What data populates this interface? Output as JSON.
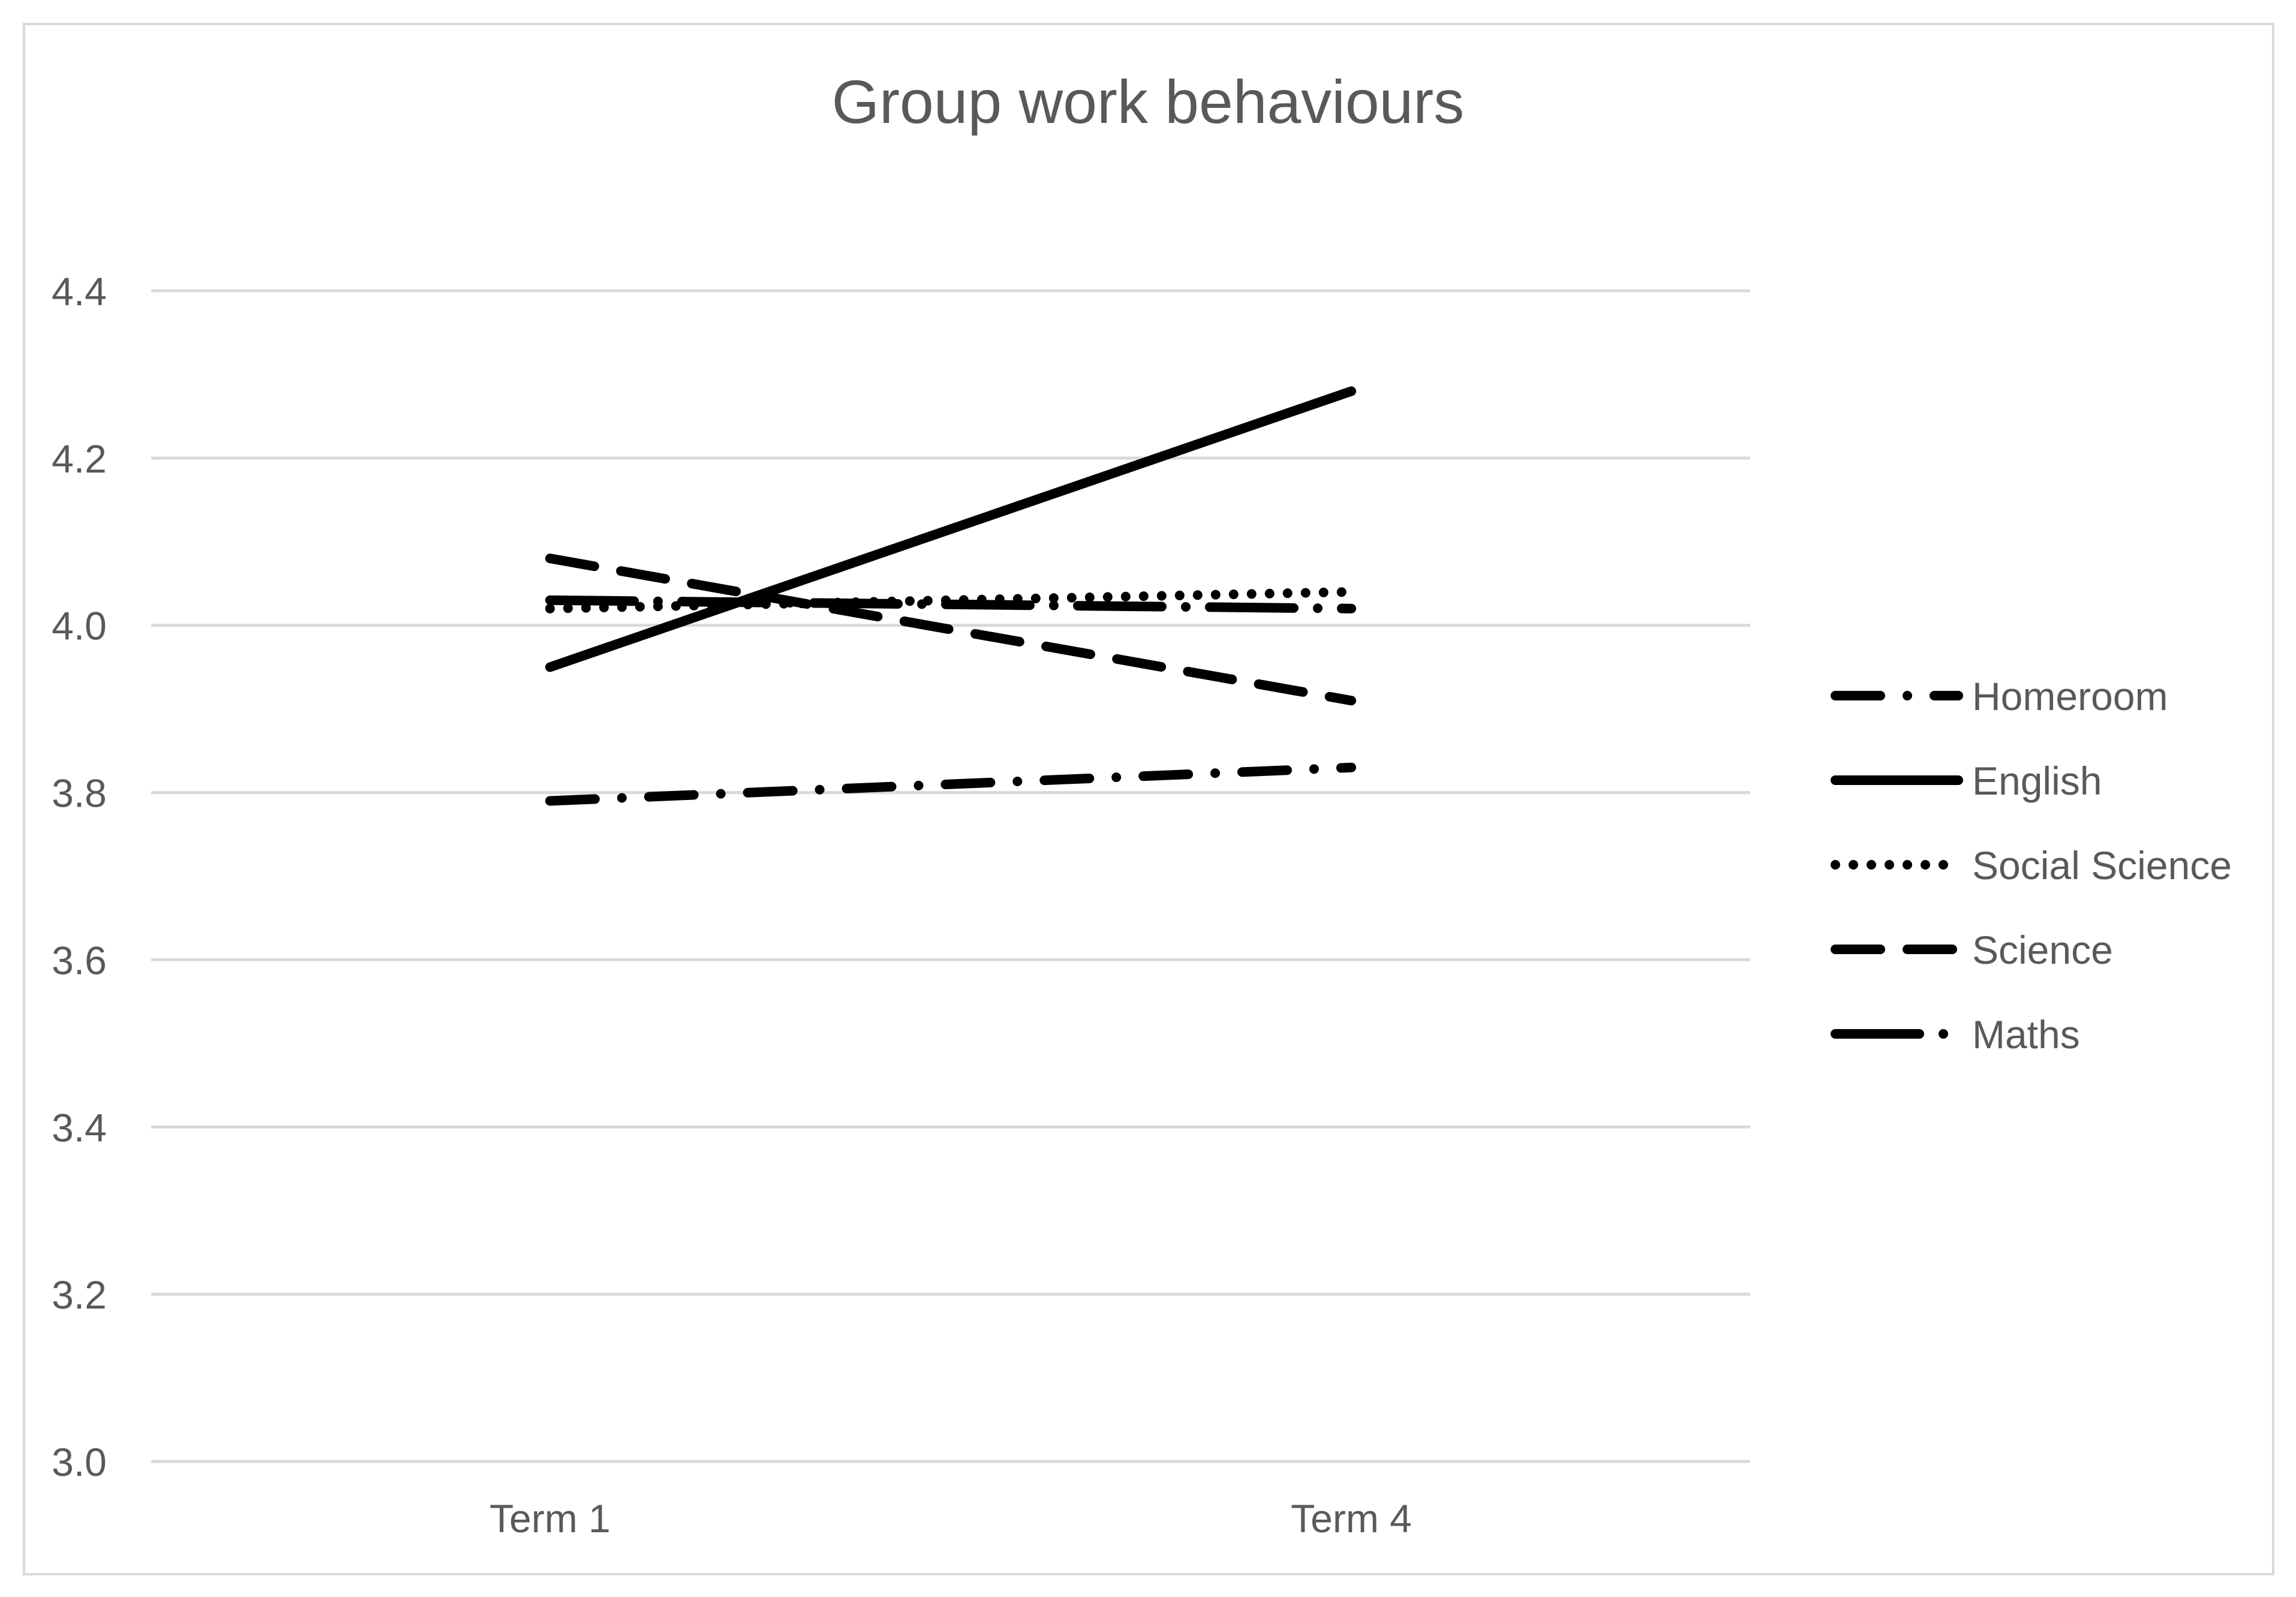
{
  "chart_data": {
    "type": "line",
    "title": "Group work behaviours",
    "xlabel": "",
    "ylabel": "",
    "categories": [
      "Term 1",
      "Term 4"
    ],
    "ylim": [
      3.0,
      4.4
    ],
    "yticks": [
      "3.0",
      "3.2",
      "3.4",
      "3.6",
      "3.8",
      "4.0",
      "4.2",
      "4.4"
    ],
    "ytick_values": [
      3.0,
      3.2,
      3.4,
      3.6,
      3.8,
      4.0,
      4.2,
      4.4
    ],
    "grid": true,
    "legend_position": "right",
    "series": [
      {
        "name": "Homeroom",
        "values": [
          3.79,
          3.83
        ],
        "style": "long-dash-dot",
        "color": "#000000"
      },
      {
        "name": "English",
        "values": [
          3.95,
          4.28
        ],
        "style": "solid",
        "color": "#000000"
      },
      {
        "name": "Social Science",
        "values": [
          4.02,
          4.04
        ],
        "style": "dotted",
        "color": "#000000"
      },
      {
        "name": "Science",
        "values": [
          4.08,
          3.91
        ],
        "style": "dashed",
        "color": "#000000"
      },
      {
        "name": "Maths",
        "values": [
          4.03,
          4.02
        ],
        "style": "long-dash-dot-dot",
        "color": "#000000"
      }
    ],
    "colors": {
      "grid": "#d9d9d9",
      "text": "#595959",
      "frame": "#d9d9d9",
      "line": "#000000"
    }
  }
}
